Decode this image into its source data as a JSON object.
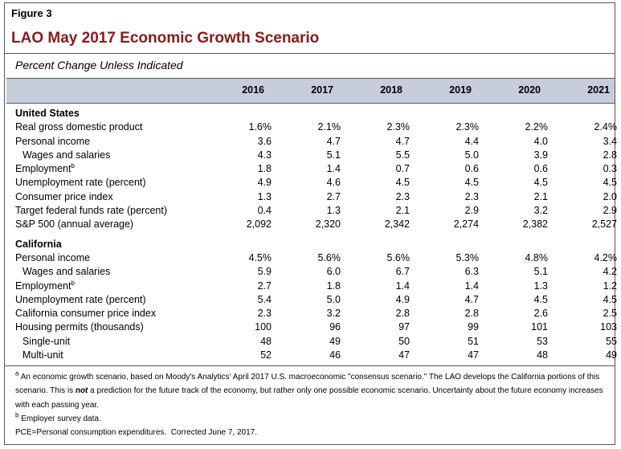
{
  "figure_label": "Figure 3",
  "title": "LAO May 2017 Economic Growth Scenario",
  "subtitle": "Percent Change Unless Indicated",
  "table": {
    "columns": [
      "2016",
      "2017",
      "2018",
      "2019",
      "2020",
      "2021"
    ],
    "sections": [
      {
        "heading": "United States",
        "rows": [
          {
            "label": "Real gross domestic product",
            "values": [
              "1.6%",
              "2.1%",
              "2.3%",
              "2.3%",
              "2.2%",
              "2.4%"
            ]
          },
          {
            "label": "Personal income",
            "values": [
              "3.6",
              "4.7",
              "4.7",
              "4.4",
              "4.0",
              "3.4"
            ]
          },
          {
            "label": "Wages and salaries",
            "indent": true,
            "values": [
              "4.3",
              "5.1",
              "5.5",
              "5.0",
              "3.9",
              "2.8"
            ]
          },
          {
            "label": "Employment",
            "sup": "b",
            "values": [
              "1.8",
              "1.4",
              "0.7",
              "0.6",
              "0.6",
              "0.3"
            ]
          },
          {
            "label": "Unemployment rate (percent)",
            "values": [
              "4.9",
              "4.6",
              "4.5",
              "4.5",
              "4.5",
              "4.5"
            ]
          },
          {
            "label": "Consumer price index",
            "values": [
              "1.3",
              "2.7",
              "2.3",
              "2.3",
              "2.1",
              "2.0"
            ]
          },
          {
            "label": "Target federal funds rate (percent)",
            "values": [
              "0.4",
              "1.3",
              "2.1",
              "2.9",
              "3.2",
              "2.9"
            ]
          },
          {
            "label": "S&P 500 (annual average)",
            "values": [
              "2,092",
              "2,320",
              "2,342",
              "2,274",
              "2,382",
              "2,527"
            ]
          }
        ]
      },
      {
        "heading": "California",
        "rows": [
          {
            "label": "Personal income",
            "values": [
              "4.5%",
              "5.6%",
              "5.6%",
              "5.3%",
              "4.8%",
              "4.2%"
            ]
          },
          {
            "label": "Wages and salaries",
            "indent": true,
            "values": [
              "5.9",
              "6.0",
              "6.7",
              "6.3",
              "5.1",
              "4.2"
            ]
          },
          {
            "label": "Employment",
            "sup": "b",
            "values": [
              "2.7",
              "1.8",
              "1.4",
              "1.4",
              "1.3",
              "1.2"
            ]
          },
          {
            "label": "Unemployment rate (percent)",
            "values": [
              "5.4",
              "5.0",
              "4.9",
              "4.7",
              "4.5",
              "4.5"
            ]
          },
          {
            "label": "California consumer price index",
            "values": [
              "2.3",
              "3.2",
              "2.8",
              "2.8",
              "2.6",
              "2.5"
            ]
          },
          {
            "label": "Housing permits (thousands)",
            "values": [
              "100",
              "96",
              "97",
              "99",
              "101",
              "103"
            ]
          },
          {
            "label": "Single-unit",
            "indent": true,
            "values": [
              "48",
              "49",
              "50",
              "51",
              "53",
              "55"
            ]
          },
          {
            "label": "Multi-unit",
            "indent": true,
            "values": [
              "52",
              "46",
              "47",
              "47",
              "48",
              "49"
            ]
          }
        ]
      }
    ]
  },
  "footnotes": [
    {
      "marker": "a",
      "text_before": "An economic growth scenario, based on Moody's Analytics' April 2017 U.S. macroeconomic \"consensus scenario.\" The LAO develops the California portions of this scenario. This is ",
      "emphasis": "not",
      "text_after": " a prediction for the future track of the economy, but rather only one possible economic scenario. Uncertainty about the future economy increases with each passing year."
    },
    {
      "marker": "b",
      "text": "Employer survey data."
    }
  ],
  "note": "PCE=Personal consumption expenditures.  Corrected June 7, 2017."
}
